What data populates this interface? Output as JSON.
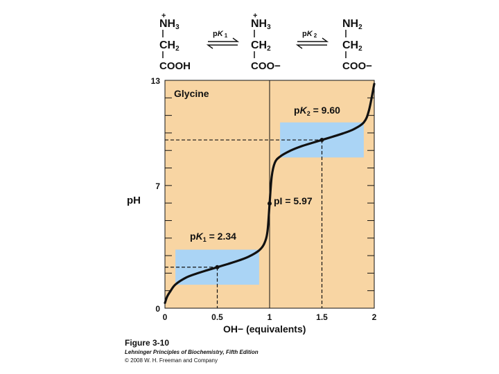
{
  "structures": [
    {
      "charge": "+",
      "line1": "NH",
      "sub1": "3",
      "line2": "CH",
      "sub2": "2",
      "line3": "COOH"
    },
    {
      "charge": "+",
      "line1": "NH",
      "sub1": "3",
      "line2": "CH",
      "sub2": "2",
      "line3": "COO−"
    },
    {
      "charge": "",
      "line1": "NH",
      "sub1": "2",
      "line2": "CH",
      "sub2": "2",
      "line3": "COO−"
    }
  ],
  "equilibria": [
    {
      "prefix": "p",
      "symbol": "K",
      "sub": "1"
    },
    {
      "prefix": "p",
      "symbol": "K",
      "sub": "2"
    }
  ],
  "chart_data": {
    "type": "line",
    "title": "Glycine",
    "xlabel": "OH−  (equivalents)",
    "ylabel": "pH",
    "xlim": [
      0,
      2
    ],
    "ylim": [
      0,
      13
    ],
    "xticks": [
      "0",
      "0.5",
      "1",
      "1.5",
      "2"
    ],
    "xtick_values": [
      0,
      0.5,
      1,
      1.5,
      2
    ],
    "yticks": [
      "0",
      "7",
      "13"
    ],
    "ytick_values": [
      0,
      7,
      13
    ],
    "series": [
      {
        "color": "#111111",
        "x": [
          0.0,
          0.02,
          0.05,
          0.1,
          0.2,
          0.3,
          0.4,
          0.5,
          0.6,
          0.7,
          0.8,
          0.9,
          0.95,
          0.98,
          1.0,
          1.02,
          1.05,
          1.1,
          1.2,
          1.3,
          1.4,
          1.5,
          1.6,
          1.7,
          1.8,
          1.9,
          1.95,
          2.0
        ],
        "y": [
          0.3,
          0.65,
          0.95,
          1.35,
          1.74,
          1.97,
          2.16,
          2.34,
          2.52,
          2.71,
          2.94,
          3.3,
          3.7,
          4.4,
          5.97,
          7.5,
          8.3,
          8.65,
          8.99,
          9.23,
          9.42,
          9.6,
          9.78,
          9.97,
          10.2,
          10.6,
          11.3,
          12.8
        ]
      }
    ],
    "annotations": {
      "pK1": {
        "prefix": "p",
        "symbol": "K",
        "sub": "1",
        "text": " = 2.34",
        "x": 0.5,
        "y": 2.34
      },
      "pK2": {
        "prefix": "p",
        "symbol": "K",
        "sub": "2",
        "text": " = 9.60",
        "x": 1.5,
        "y": 9.6
      },
      "pI": {
        "text": "pI = 5.97",
        "x": 1.0,
        "y": 5.97
      }
    },
    "buffer_regions": [
      {
        "x": [
          0.1,
          0.9
        ],
        "y": [
          1.34,
          3.34
        ]
      },
      {
        "x": [
          1.1,
          1.9
        ],
        "y": [
          8.6,
          10.6
        ]
      }
    ],
    "grid": false,
    "background": "#f8d5a3",
    "buffer_color": "#aad4f5"
  },
  "figure": {
    "title": "Figure 3-10",
    "book": "Lehninger Principles of Biochemistry, Fifth Edition",
    "copyright": "© 2008 W. H. Freeman and Company"
  }
}
